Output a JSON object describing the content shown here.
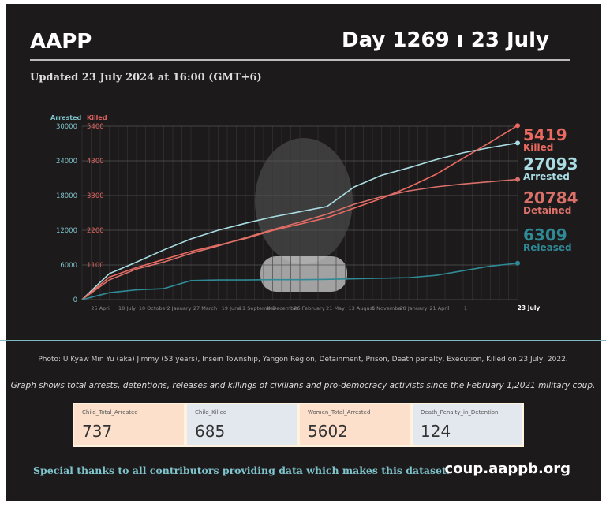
{
  "header": {
    "brand": "AAPP",
    "day": "Day 1269 ı 23 July",
    "updated": "Updated 23 July 2024 at 16:00 (GMT+6)"
  },
  "chart_data": {
    "type": "line",
    "left_axis": {
      "label": "Arrested",
      "ticks": [
        0,
        6000,
        12000,
        18000,
        24000,
        30000
      ],
      "range": [
        0,
        30000
      ],
      "color": "#7fc3cc"
    },
    "right_axis": {
      "label": "Killed",
      "ticks": [
        "1100",
        "2200",
        "3300",
        "4300",
        "5400"
      ],
      "range": [
        0,
        5400
      ],
      "color": "#e0645f"
    },
    "x_ticks": [
      "25 April",
      "18 July",
      "10 October",
      "2 January",
      "27 March",
      "19 June",
      "11 September",
      "4 December",
      "26 February",
      "21 May",
      "13 August",
      "5 November",
      "28 January",
      "21 April",
      "1",
      "23 July"
    ],
    "series": [
      {
        "name": "Arrested",
        "axis": "left",
        "color": "#a9dde3",
        "values": [
          0,
          4500,
          6500,
          8600,
          10500,
          12000,
          13200,
          14300,
          15200,
          16100,
          19500,
          21500,
          22800,
          24200,
          25400,
          26300,
          27093
        ],
        "end_label": "27093",
        "label": "Arrested"
      },
      {
        "name": "Killed",
        "axis": "right",
        "color": "#ea6a62",
        "values": [
          0,
          700,
          1000,
          1250,
          1500,
          1700,
          1900,
          2150,
          2350,
          2550,
          2850,
          3150,
          3500,
          3900,
          4400,
          4900,
          5419
        ],
        "end_label": "5419",
        "label": "Killed"
      },
      {
        "name": "Detained",
        "axis": "left",
        "color": "#d9706a",
        "values": [
          0,
          3400,
          5300,
          6500,
          8000,
          9300,
          10700,
          12100,
          13400,
          14800,
          16500,
          17800,
          18800,
          19500,
          20000,
          20400,
          20784
        ],
        "end_label": "20784",
        "label": "Detained"
      },
      {
        "name": "Released",
        "axis": "left",
        "color": "#2f8a96",
        "values": [
          0,
          1200,
          1700,
          1900,
          3300,
          3400,
          3400,
          3450,
          3450,
          3500,
          3600,
          3700,
          3800,
          4200,
          5000,
          5800,
          6309
        ],
        "end_label": "6309",
        "label": "Released"
      }
    ]
  },
  "photo_caption": "Photo: U Kyaw Min Yu (aka) Jimmy (53 years), Insein Township, Yangon Region, Detainment, Prison, Death penalty, Execution, Killed on 23 July, 2022.",
  "description": "Graph shows total arrests, detentions, releases and killings of civilians and pro-democracy activists since the February 1,2021 military coup.",
  "kpis": [
    {
      "label": "Child_Total_Arrested",
      "value": "737",
      "bg": "#fde0cc"
    },
    {
      "label": "Child_Killed",
      "value": "685",
      "bg": "#e3e8ef"
    },
    {
      "label": "Women_Total_Arrested",
      "value": "5602",
      "bg": "#fde0cc"
    },
    {
      "label": "Death_Penalty_in_Detention",
      "value": "124",
      "bg": "#e3e8ef"
    }
  ],
  "footer": {
    "thanks": "Special thanks to all contributors providing data which makes this dataset.",
    "url": "coup.aappb.org"
  }
}
